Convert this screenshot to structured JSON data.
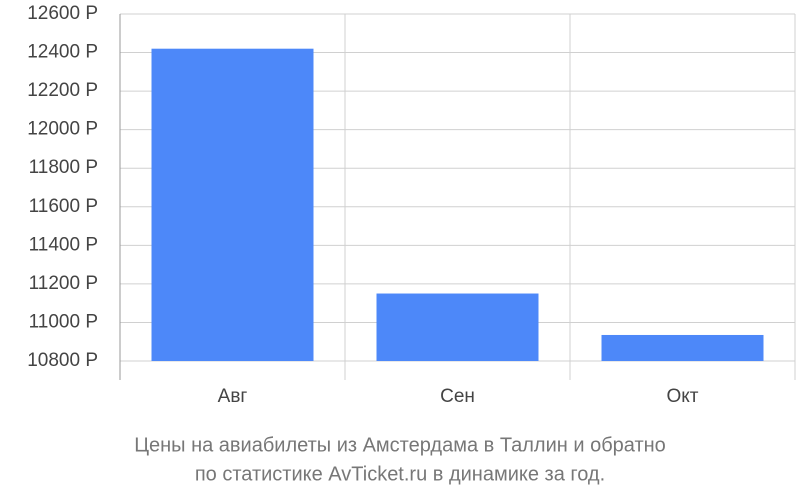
{
  "chart_data": {
    "type": "bar",
    "title": [
      "Цены на авиабилеты из Амстердама в Таллин и обратно",
      "по статистике AvTicket.ru в динамике за год."
    ],
    "categories": [
      "Авг",
      "Сен",
      "Окт"
    ],
    "values": [
      12420,
      11150,
      10935
    ],
    "color": "#4d88f9",
    "ylim": [
      10800,
      12600
    ],
    "yticks": [
      {
        "value": 10800,
        "label": "10800 Р"
      },
      {
        "value": 11000,
        "label": "11000 Р"
      },
      {
        "value": 11200,
        "label": "11200 Р"
      },
      {
        "value": 11400,
        "label": "11400 Р"
      },
      {
        "value": 11600,
        "label": "11600 Р"
      },
      {
        "value": 11800,
        "label": "11800 Р"
      },
      {
        "value": 12000,
        "label": "12000 Р"
      },
      {
        "value": 12200,
        "label": "12200 Р"
      },
      {
        "value": 12400,
        "label": "12400 Р"
      },
      {
        "value": 12600,
        "label": "12600 Р"
      }
    ],
    "grid": true
  }
}
